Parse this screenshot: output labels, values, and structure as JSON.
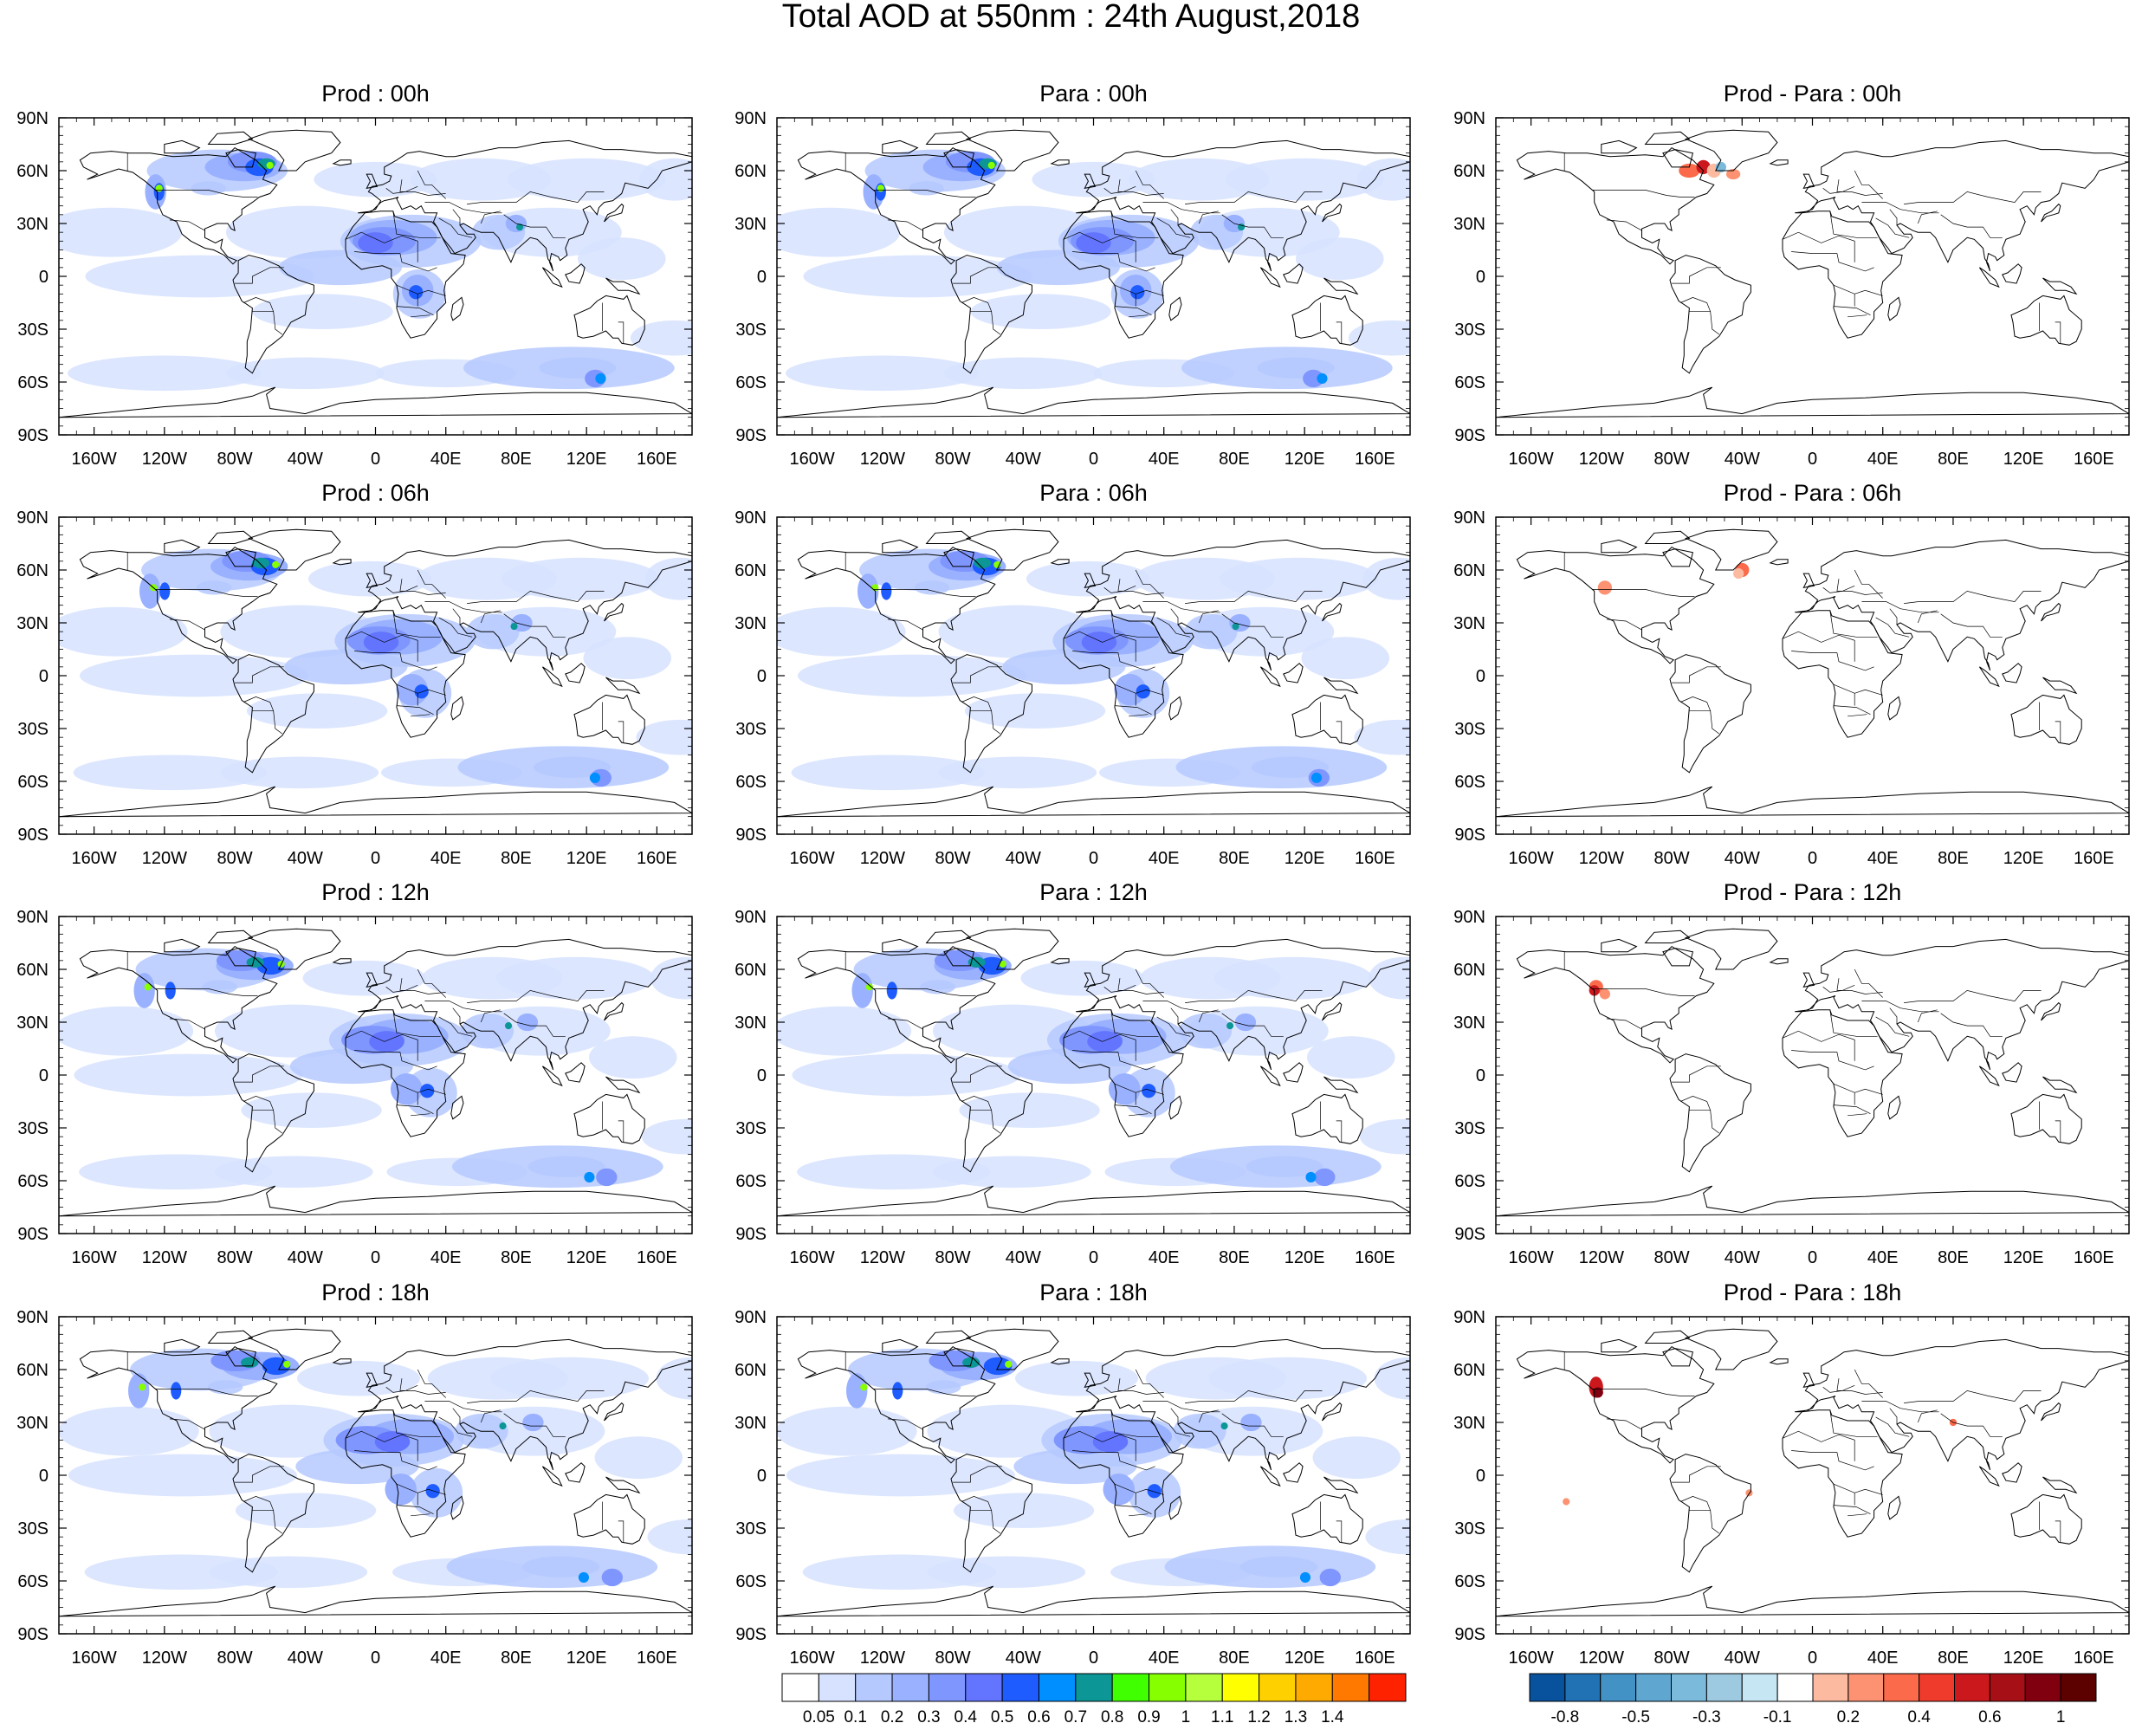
{
  "title": "Total AOD at 550nm : 24th August,2018",
  "axes": {
    "lat_labels": [
      "90N",
      "60N",
      "30N",
      "0",
      "30S",
      "60S",
      "90S"
    ],
    "lon_labels": [
      "160W",
      "120W",
      "80W",
      "40W",
      "0",
      "40E",
      "80E",
      "120E",
      "160E"
    ]
  },
  "panels": [
    {
      "title": "Prod : 00h",
      "field": "aod",
      "time": "00h"
    },
    {
      "title": "Para : 00h",
      "field": "aod",
      "time": "00h"
    },
    {
      "title": "Prod - Para : 00h",
      "field": "diff",
      "time": "00h"
    },
    {
      "title": "Prod : 06h",
      "field": "aod",
      "time": "06h"
    },
    {
      "title": "Para : 06h",
      "field": "aod",
      "time": "06h"
    },
    {
      "title": "Prod - Para : 06h",
      "field": "diff",
      "time": "06h"
    },
    {
      "title": "Prod : 12h",
      "field": "aod",
      "time": "12h"
    },
    {
      "title": "Para : 12h",
      "field": "aod",
      "time": "12h"
    },
    {
      "title": "Prod - Para : 12h",
      "field": "diff",
      "time": "12h"
    },
    {
      "title": "Prod : 18h",
      "field": "aod",
      "time": "18h"
    },
    {
      "title": "Para : 18h",
      "field": "aod",
      "time": "18h"
    },
    {
      "title": "Prod - Para : 18h",
      "field": "diff",
      "time": "18h"
    }
  ],
  "colorbars": {
    "aod": {
      "labels": [
        "0.05",
        "0.1",
        "0.2",
        "0.3",
        "0.4",
        "0.5",
        "0.6",
        "0.7",
        "0.8",
        "0.9",
        "1",
        "1.1",
        "1.2",
        "1.3",
        "1.4"
      ],
      "colors": [
        "#ffffff",
        "#d6e2ff",
        "#b5c9ff",
        "#99b1ff",
        "#7f96ff",
        "#6375ff",
        "#1e5cff",
        "#008fff",
        "#0c9696",
        "#40ff00",
        "#86ff00",
        "#b6ff3c",
        "#ffff00",
        "#ffd000",
        "#ffaa00",
        "#ff7800"
      ],
      "top_color": "#ff2200"
    },
    "diff": {
      "labels": [
        "-0.8",
        "-0.5",
        "-0.3",
        "-0.1",
        "0.2",
        "0.4",
        "0.6",
        "1"
      ],
      "colors": [
        "#08519c",
        "#2171b5",
        "#4292c6",
        "#5fa6d1",
        "#7bbadb",
        "#9ecae1",
        "#c6e6f4",
        "#ffffff",
        "#fcbba1",
        "#fc9272",
        "#fb6a4a",
        "#ef3b2c",
        "#cb181d",
        "#a50f15",
        "#800010",
        "#5c0000"
      ]
    }
  }
}
